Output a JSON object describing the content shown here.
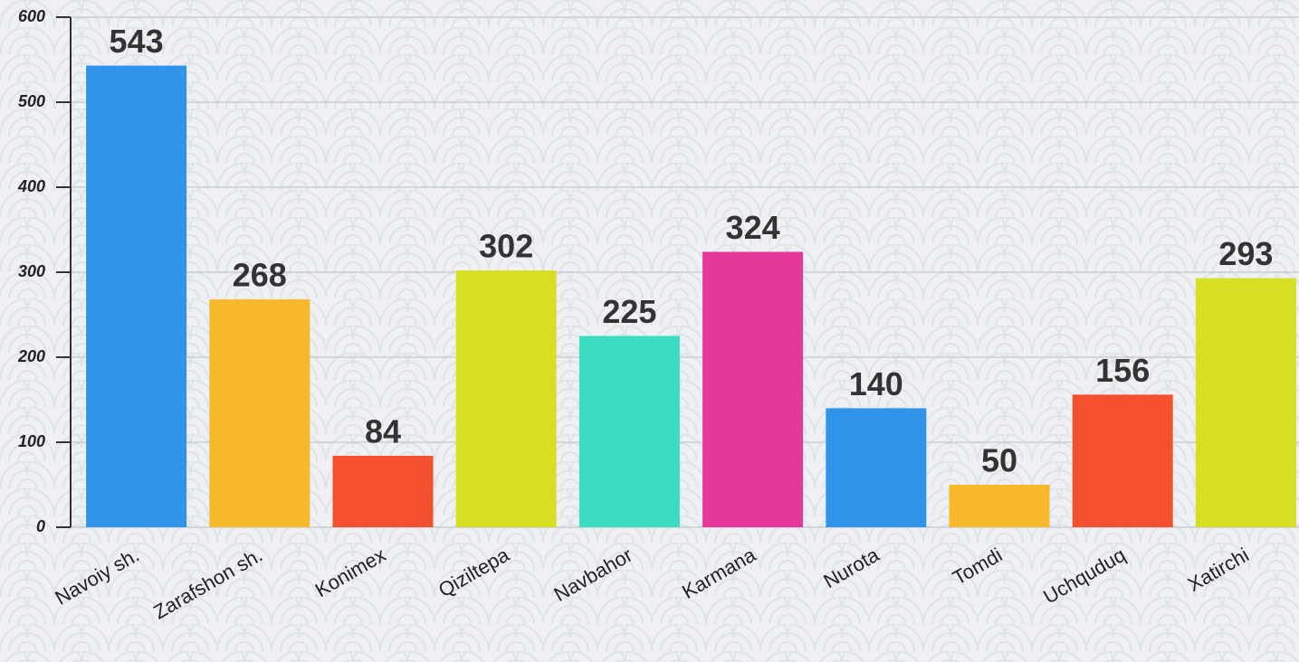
{
  "chart_data": {
    "type": "bar",
    "categories": [
      "Navoiy sh.",
      "Zarafshon sh.",
      "Konimex",
      "Qiziltepa",
      "Navbahor",
      "Karmana",
      "Nurota",
      "Tomdi",
      "Uchquduq",
      "Xatirchi"
    ],
    "values": [
      543,
      268,
      84,
      302,
      225,
      324,
      140,
      50,
      156,
      293
    ],
    "colors": [
      "#2f94ea",
      "#f6b92b",
      "#f5502d",
      "#d7df22",
      "#3bdcc1",
      "#e5389b",
      "#2f94ea",
      "#f6b92b",
      "#f5502d",
      "#d7df22"
    ],
    "ylim": [
      0,
      600
    ],
    "yticks": [
      0,
      100,
      200,
      300,
      400,
      500,
      600
    ],
    "grid": true
  }
}
